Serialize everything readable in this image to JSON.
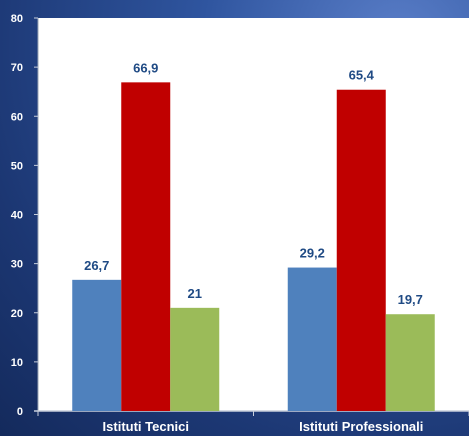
{
  "chart_data": {
    "type": "bar",
    "categories": [
      "Istituti Tecnici",
      "Istituti Professionali"
    ],
    "series": [
      {
        "values": [
          26.7,
          29.2
        ],
        "labels": [
          "26,7",
          "29,2"
        ],
        "color": "#4f81bd"
      },
      {
        "values": [
          66.9,
          65.4
        ],
        "labels": [
          "66,9",
          "65,4"
        ],
        "color": "#c00000"
      },
      {
        "values": [
          21,
          19.7
        ],
        "labels": [
          "21",
          "19,7"
        ],
        "color": "#9bbb59"
      }
    ],
    "ylim": [
      0,
      80
    ],
    "yticks": [
      0,
      10,
      20,
      30,
      40,
      50,
      60,
      70,
      80
    ],
    "grid": false,
    "legend": "none",
    "plot_background": "#ffffff",
    "label_color": "#1f4a84",
    "axis_text_color": "#ffffff"
  }
}
